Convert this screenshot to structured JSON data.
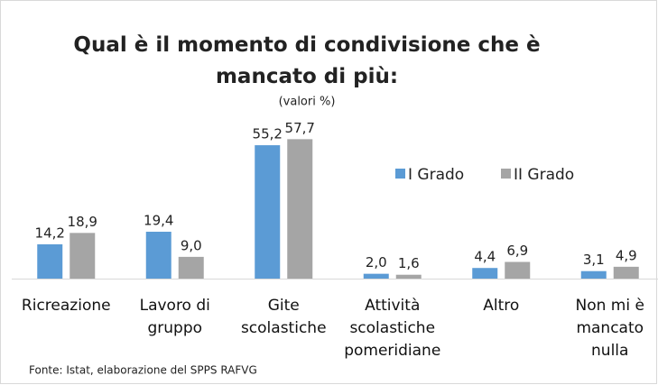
{
  "chart_data": {
    "type": "bar",
    "title": "Qual è il momento di condivisione che è mancato di più:",
    "subtitle": "(valori %)",
    "source": "Fonte: Istat, elaborazione del SPPS RAFVG",
    "categories": [
      "Ricreazione",
      "Lavoro di gruppo",
      "Gite scolastiche",
      "Attività scolastiche pomeridiane",
      "Altro",
      "Non mi è mancato nulla"
    ],
    "series": [
      {
        "name": "I Grado",
        "color": "#5b9bd5",
        "values": [
          14.2,
          19.4,
          55.2,
          2.0,
          4.4,
          3.1
        ],
        "value_labels": [
          "14,2",
          "19,4",
          "55,2",
          "2,0",
          "4,4",
          "3,1"
        ]
      },
      {
        "name": "II Grado",
        "color": "#a5a5a5",
        "values": [
          18.9,
          9.0,
          57.7,
          1.6,
          6.9,
          4.9
        ],
        "value_labels": [
          "18,9",
          "9,0",
          "57,7",
          "1,6",
          "6,9",
          "4,9"
        ]
      }
    ]
  }
}
